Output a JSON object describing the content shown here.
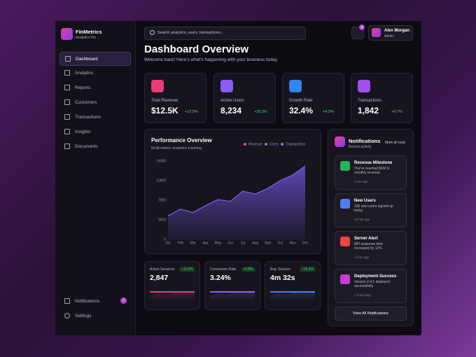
{
  "brand": {
    "name": "FinMetrics",
    "tagline": "Analytics Pro"
  },
  "nav": [
    "Dashboard",
    "Analytics",
    "Reports",
    "Customers",
    "Transactions",
    "Insights",
    "Documents"
  ],
  "nav_bottom": {
    "notifications": "Notifications",
    "badge": "3",
    "settings": "Settings"
  },
  "search": "Search analytics, users, transactions...",
  "topbar": {
    "badge": "3",
    "user": "Alex Morgan",
    "role": "Admin"
  },
  "header": {
    "title": "Dashboard Overview",
    "subtitle": "Welcome back! Here's what's happening with your business today."
  },
  "stats": [
    {
      "label": "Total Revenue",
      "value": "$12.5K",
      "change": "+12.5%",
      "color": "#ec3c78"
    },
    {
      "label": "Active Users",
      "value": "8,234",
      "change": "+18.2%",
      "color": "#8b5cf6"
    },
    {
      "label": "Growth Rate",
      "value": "32.4%",
      "change": "+4.3%",
      "color": "#2f84ee"
    },
    {
      "label": "Transactions",
      "value": "1,842",
      "change": "+8.7%",
      "color": "#a24ff0"
    }
  ],
  "chart_data": {
    "type": "area",
    "title": "Performance Overview",
    "subtitle": "Multi-metric analytics tracking",
    "legend": [
      {
        "name": "Revenue",
        "color": "#e84f9c"
      },
      {
        "name": "Users",
        "color": "#a36cf5"
      },
      {
        "name": "Transactions",
        "color": "#4f8ef5"
      }
    ],
    "categories": [
      "Jan",
      "Feb",
      "Mar",
      "Apr",
      "May",
      "Jun",
      "Jul",
      "Aug",
      "Sep",
      "Oct",
      "Nov",
      "Dec"
    ],
    "values": [
      4200,
      5400,
      4800,
      6000,
      7100,
      6800,
      8600,
      8100,
      9100,
      10500,
      11500,
      13100
    ],
    "color": "#7b5cf0",
    "ylim": [
      0,
      14000
    ],
    "yticks": [
      0,
      3500,
      7000,
      10500,
      14000
    ],
    "grid": true
  },
  "metrics": [
    {
      "label": "Active Sessions",
      "change": "+12.5%",
      "value": "2,847",
      "color": "#e0508a"
    },
    {
      "label": "Conversion Rate",
      "change": "+0.8%",
      "value": "3.24%",
      "color": "#a36cf5"
    },
    {
      "label": "Avg. Session",
      "change": "+18.2%",
      "value": "4m 32s",
      "color": "#4f8ef5"
    }
  ],
  "notifications": {
    "title": "Notifications",
    "subtitle": "Recent activity",
    "mark": "Mark all read",
    "button": "View All Notifications",
    "items": [
      {
        "title": "Revenue Milestone",
        "text": "You've reached $1M in monthly revenue",
        "time": "2 min ago",
        "color": "#22b45a"
      },
      {
        "title": "New Users",
        "text": "156 new users signed up today",
        "time": "15 min ago",
        "color": "#4f7ef5"
      },
      {
        "title": "Server Alert",
        "text": "API response time increased by 12%",
        "time": "1 hour ago",
        "color": "#ef4444"
      },
      {
        "title": "Deployment Success",
        "text": "Version 2.4.1 deployed successfully",
        "time": "2 hours ago",
        "color": "#c83ad6"
      }
    ]
  }
}
